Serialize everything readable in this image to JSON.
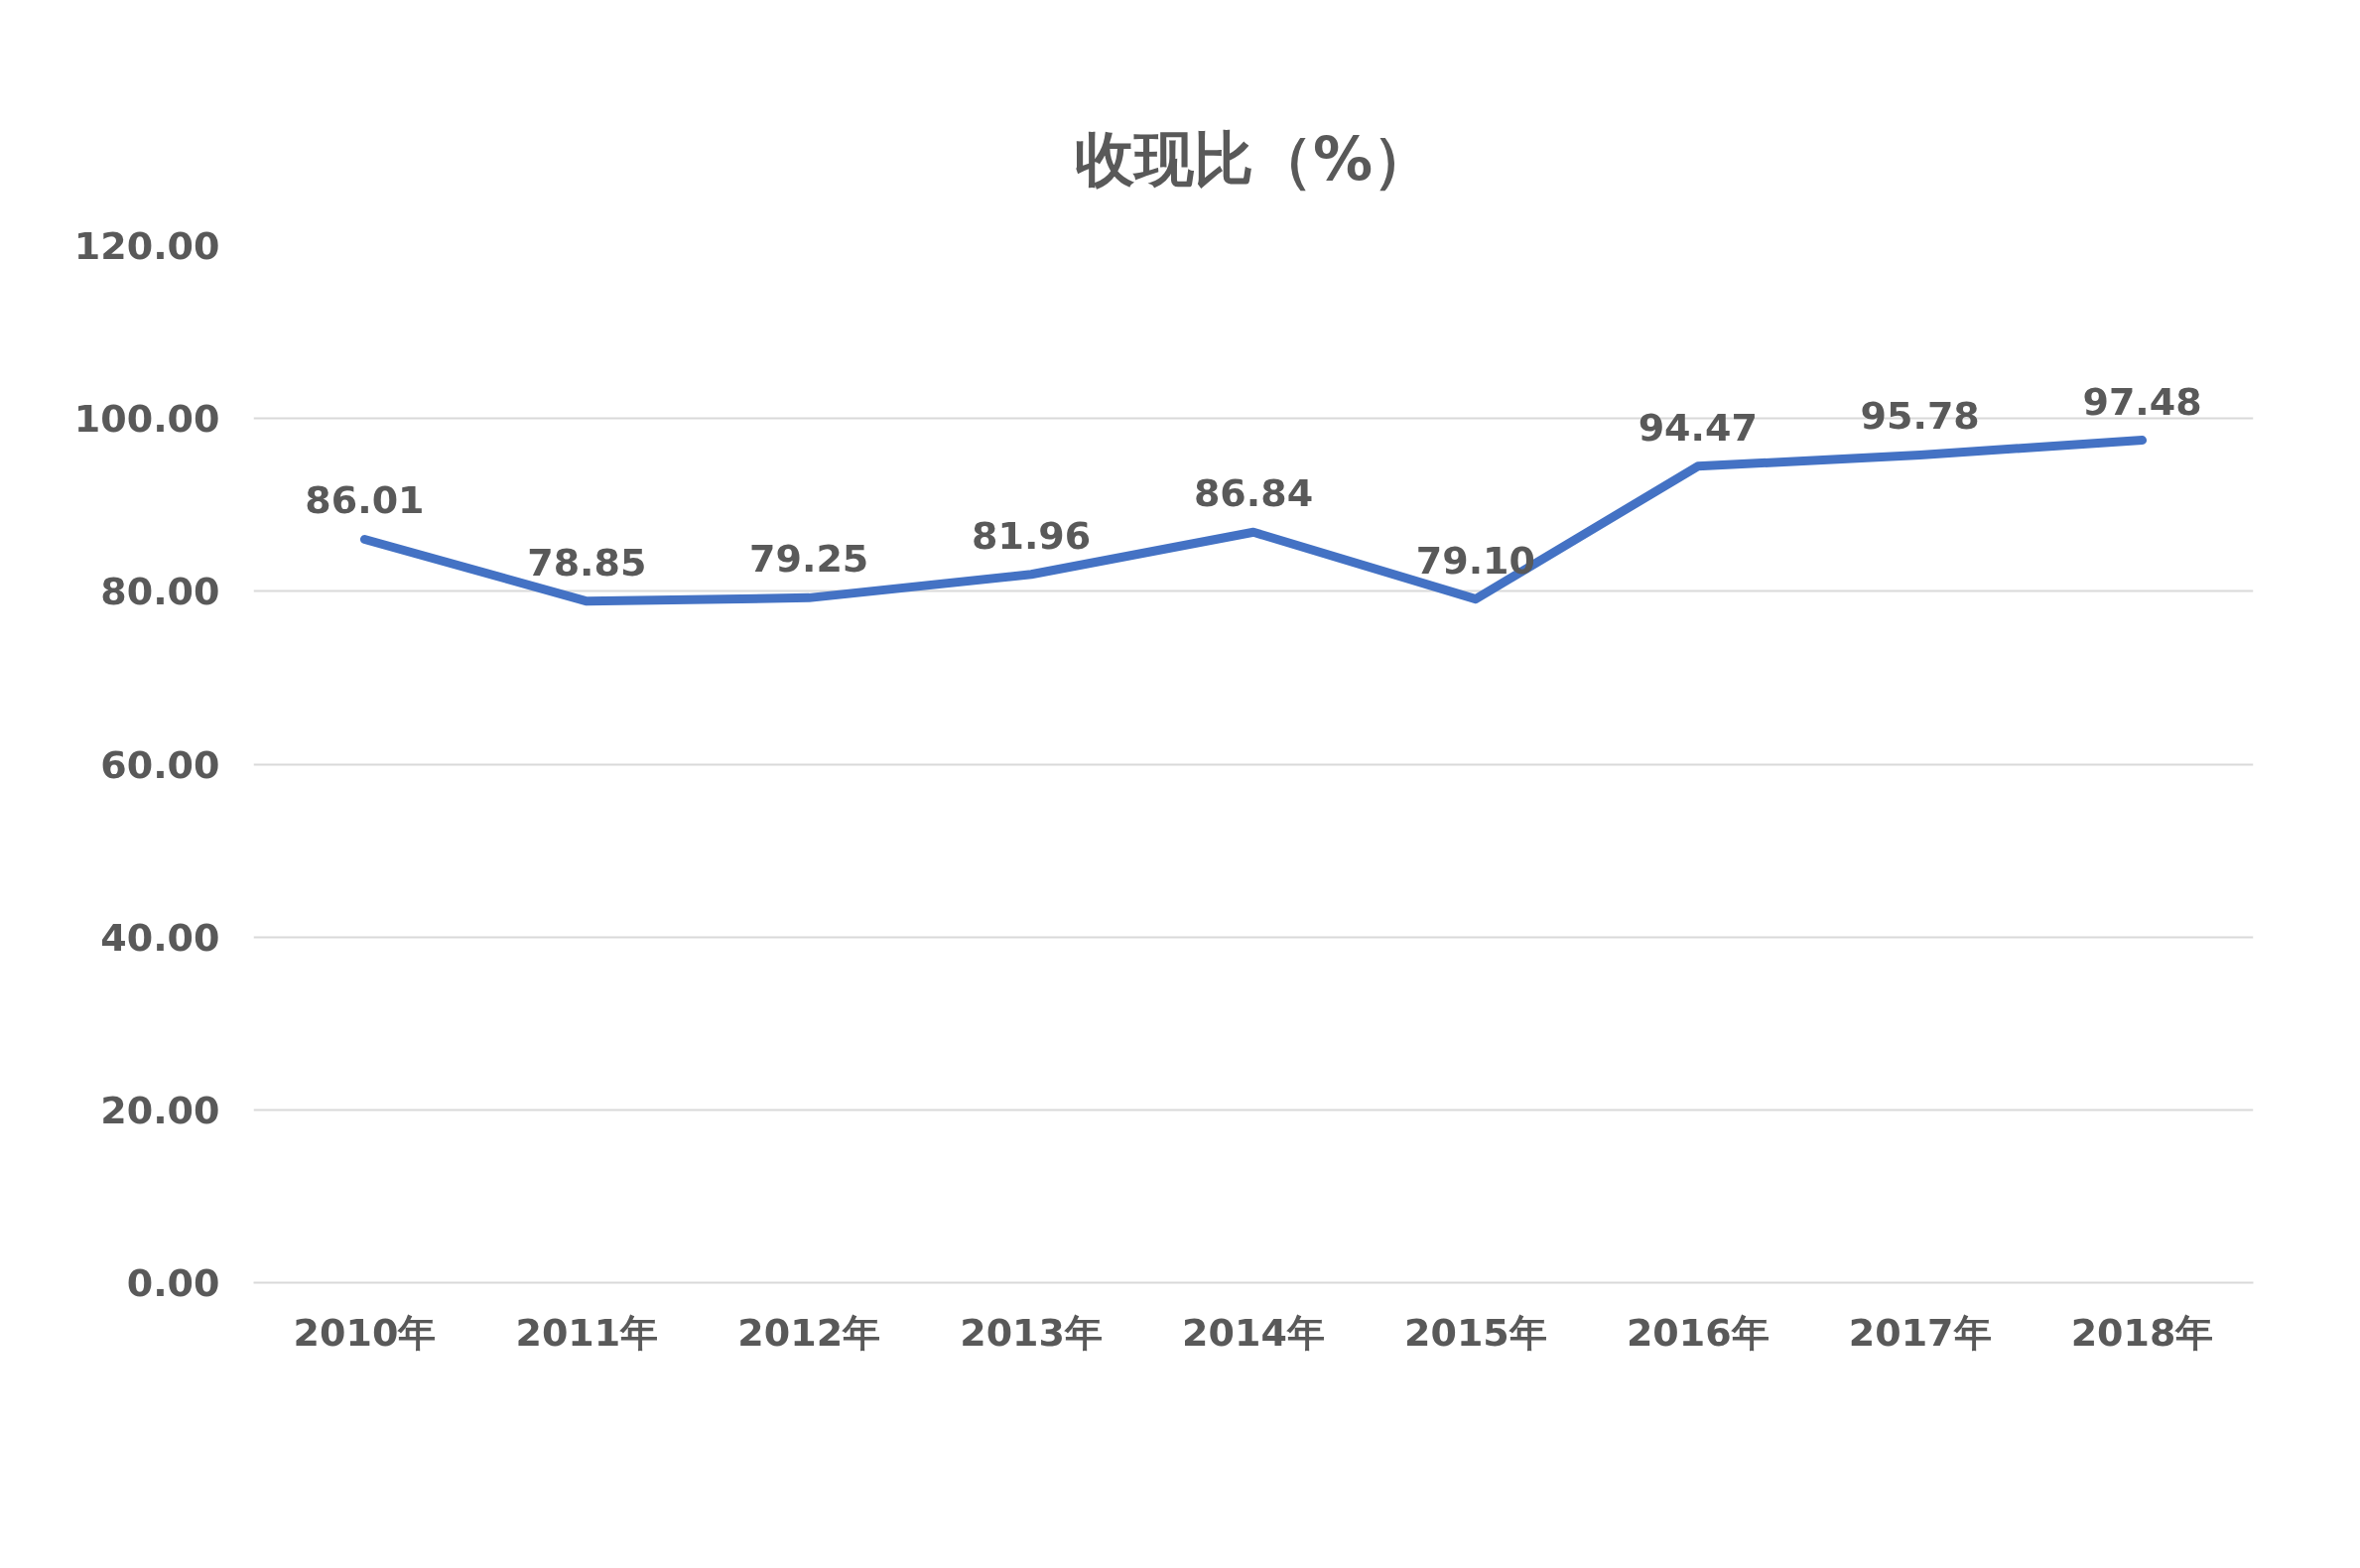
{
  "chart_data": {
    "type": "line",
    "title": "收现比（%）",
    "categories": [
      "2010年",
      "2011年",
      "2012年",
      "2013年",
      "2014年",
      "2015年",
      "2016年",
      "2017年",
      "2018年"
    ],
    "series": [
      {
        "color": "#4472c4",
        "values": [
          86.01,
          78.85,
          79.25,
          81.96,
          86.84,
          79.1,
          94.47,
          95.78,
          97.48
        ],
        "value_labels": [
          "86.01",
          "78.85",
          "79.25",
          "81.96",
          "86.84",
          "79.10",
          "94.47",
          "95.78",
          "97.48"
        ]
      }
    ],
    "ylim": [
      0,
      120
    ],
    "yticks": [
      {
        "value": 0,
        "label": "0.00"
      },
      {
        "value": 20,
        "label": "20.00"
      },
      {
        "value": 40,
        "label": "40.00"
      },
      {
        "value": 60,
        "label": "60.00"
      },
      {
        "value": 80,
        "label": "80.00"
      },
      {
        "value": 100,
        "label": "100.00"
      },
      {
        "value": 120,
        "label": "120.00"
      }
    ],
    "grid": "y",
    "line_style": "solid"
  }
}
